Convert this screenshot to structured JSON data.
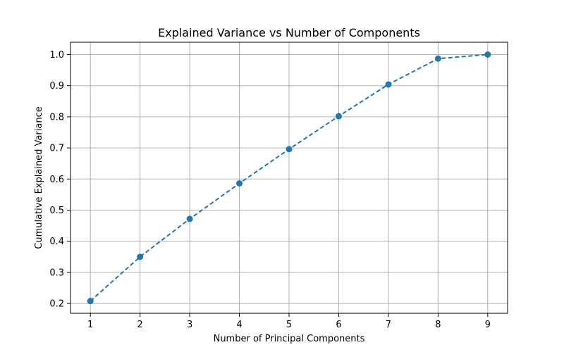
{
  "chart_data": {
    "type": "line",
    "title": "Explained Variance vs Number of Components",
    "xlabel": "Number of Principal Components",
    "ylabel": "Cumulative Explained Variance",
    "x": [
      1,
      2,
      3,
      4,
      5,
      6,
      7,
      8,
      9
    ],
    "series": [
      {
        "values": [
          0.208,
          0.35,
          0.472,
          0.586,
          0.696,
          0.802,
          0.904,
          0.987,
          1.0
        ],
        "color": "#1f77b4",
        "line_style": "dashed",
        "marker": "circle"
      }
    ],
    "x_ticks": [
      "1",
      "2",
      "3",
      "4",
      "5",
      "6",
      "7",
      "8",
      "9"
    ],
    "y_ticks": [
      "0.2",
      "0.3",
      "0.4",
      "0.5",
      "0.6",
      "0.7",
      "0.8",
      "0.9",
      "1.0"
    ],
    "y_tick_values": [
      0.2,
      0.3,
      0.4,
      0.5,
      0.6,
      0.7,
      0.8,
      0.9,
      1.0
    ],
    "xlim": [
      0.6,
      9.4
    ],
    "ylim": [
      0.1686,
      1.0396
    ],
    "grid": true,
    "grid_color": "#b0b0b0"
  }
}
